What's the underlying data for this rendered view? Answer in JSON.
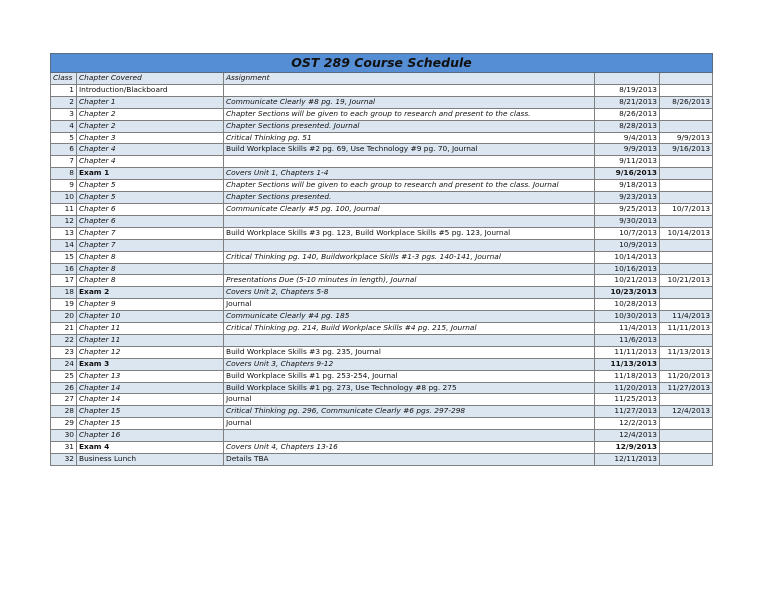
{
  "title": "OST 289 Course Schedule",
  "headers": {
    "class": "Class",
    "chapter": "Chapter Covered",
    "assignment": "Assignment",
    "date": "",
    "due": ""
  },
  "colors": {
    "title_bg": "#558ed5",
    "alt_row": "#dce6f1"
  },
  "rows": [
    {
      "class": "1",
      "chapter": "Introduction/Blackboard",
      "assignment": "",
      "date": "8/19/2013",
      "due": ""
    },
    {
      "class": "2",
      "chapter": "Chapter 1",
      "assignment": "Communicate Clearly #8 pg. 19, Journal",
      "date": "8/21/2013",
      "due": "8/26/2013"
    },
    {
      "class": "3",
      "chapter": "Chapter 2",
      "assignment": "Chapter Sections will be given to each group to research and present to the class.",
      "date": "8/26/2013",
      "due": ""
    },
    {
      "class": "4",
      "chapter": "Chapter 2",
      "assignment": "Chapter Sections presented. Journal",
      "date": "8/28/2013",
      "due": ""
    },
    {
      "class": "5",
      "chapter": "Chapter 3",
      "assignment": "Critical Thinking pg. 51",
      "date": "9/4/2013",
      "due": "9/9/2013"
    },
    {
      "class": "6",
      "chapter": "Chapter 4",
      "assignment": "Build Workplace Skills #2 pg. 69, Use Technology #9 pg. 70, Journal",
      "date": "9/9/2013",
      "due": "9/16/2013"
    },
    {
      "class": "7",
      "chapter": "Chapter 4",
      "assignment": "",
      "date": "9/11/2013",
      "due": ""
    },
    {
      "class": "8",
      "chapter": "Exam 1",
      "assignment": "Covers Unit 1, Chapters 1-4",
      "date": "9/16/2013",
      "due": "",
      "exam": true
    },
    {
      "class": "9",
      "chapter": "Chapter 5",
      "assignment": "Chapter Sections will be given to each group to research and present to the class. Journal",
      "date": "9/18/2013",
      "due": ""
    },
    {
      "class": "10",
      "chapter": "Chapter 5",
      "assignment": "Chapter Sections presented.",
      "date": "9/23/2013",
      "due": ""
    },
    {
      "class": "11",
      "chapter": "Chapter 6",
      "assignment": "Communicate Clearly #5 pg. 100, Journal",
      "date": "9/25/2013",
      "due": "10/7/2013"
    },
    {
      "class": "12",
      "chapter": "Chapter 6",
      "assignment": "",
      "date": "9/30/2013",
      "due": ""
    },
    {
      "class": "13",
      "chapter": "Chapter 7",
      "assignment": "Build Workplace Skills #3 pg. 123, Build Workplace Skills #5 pg. 123, Journal",
      "date": "10/7/2013",
      "due": "10/14/2013"
    },
    {
      "class": "14",
      "chapter": "Chapter 7",
      "assignment": "",
      "date": "10/9/2013",
      "due": ""
    },
    {
      "class": "15",
      "chapter": "Chapter 8",
      "assignment": "Critical Thinking pg. 140, Buildworkplace Skills #1-3 pgs. 140-141, Journal",
      "date": "10/14/2013",
      "due": ""
    },
    {
      "class": "16",
      "chapter": "Chapter 8",
      "assignment": "",
      "date": "10/16/2013",
      "due": ""
    },
    {
      "class": "17",
      "chapter": "Chapter 8",
      "assignment": "Presentations Due (5-10 minutes in length), Journal",
      "date": "10/21/2013",
      "due": "10/21/2013"
    },
    {
      "class": "18",
      "chapter": "Exam 2",
      "assignment": "Covers Unit 2, Chapters 5-8",
      "date": "10/23/2013",
      "due": "",
      "exam": true
    },
    {
      "class": "19",
      "chapter": "Chapter 9",
      "assignment": "Journal",
      "date": "10/28/2013",
      "due": ""
    },
    {
      "class": "20",
      "chapter": "Chapter 10",
      "assignment": "Communicate Clearly #4 pg. 185",
      "date": "10/30/2013",
      "due": "11/4/2013"
    },
    {
      "class": "21",
      "chapter": "Chapter 11",
      "assignment": "Critical Thinking pg. 214, Build Workplace Skills #4 pg. 215, Journal",
      "date": "11/4/2013",
      "due": "11/11/2013"
    },
    {
      "class": "22",
      "chapter": "Chapter 11",
      "assignment": "",
      "date": "11/6/2013",
      "due": ""
    },
    {
      "class": "23",
      "chapter": "Chapter 12",
      "assignment": "Build Workplace Skills #3 pg. 235, Journal",
      "date": "11/11/2013",
      "due": "11/13/2013"
    },
    {
      "class": "24",
      "chapter": "Exam 3",
      "assignment": "Covers Unit 3, Chapters 9-12",
      "date": "11/13/2013",
      "due": "",
      "exam": true
    },
    {
      "class": "25",
      "chapter": "Chapter 13",
      "assignment": "Build Workplace Skills #1 pg. 253-254, Journal",
      "date": "11/18/2013",
      "due": "11/20/2013"
    },
    {
      "class": "26",
      "chapter": "Chapter 14",
      "assignment": "Build Workplace Skills #1 pg. 273, Use Technology #8 pg. 275",
      "date": "11/20/2013",
      "due": "11/27/2013"
    },
    {
      "class": "27",
      "chapter": "Chapter 14",
      "assignment": "Journal",
      "date": "11/25/2013",
      "due": ""
    },
    {
      "class": "28",
      "chapter": "Chapter 15",
      "assignment": "Critical Thinking pg. 296, Communicate Clearly #6 pgs. 297-298",
      "date": "11/27/2013",
      "due": "12/4/2013"
    },
    {
      "class": "29",
      "chapter": "Chapter 15",
      "assignment": "Journal",
      "date": "12/2/2013",
      "due": ""
    },
    {
      "class": "30",
      "chapter": "Chapter 16",
      "assignment": "",
      "date": "12/4/2013",
      "due": ""
    },
    {
      "class": "31",
      "chapter": "Exam 4",
      "assignment": "Covers Unit 4, Chapters 13-16",
      "date": "12/9/2013",
      "due": "",
      "exam": true
    },
    {
      "class": "32",
      "chapter": "Business Lunch",
      "assignment": "Details TBA",
      "date": "12/11/2013",
      "due": ""
    }
  ]
}
